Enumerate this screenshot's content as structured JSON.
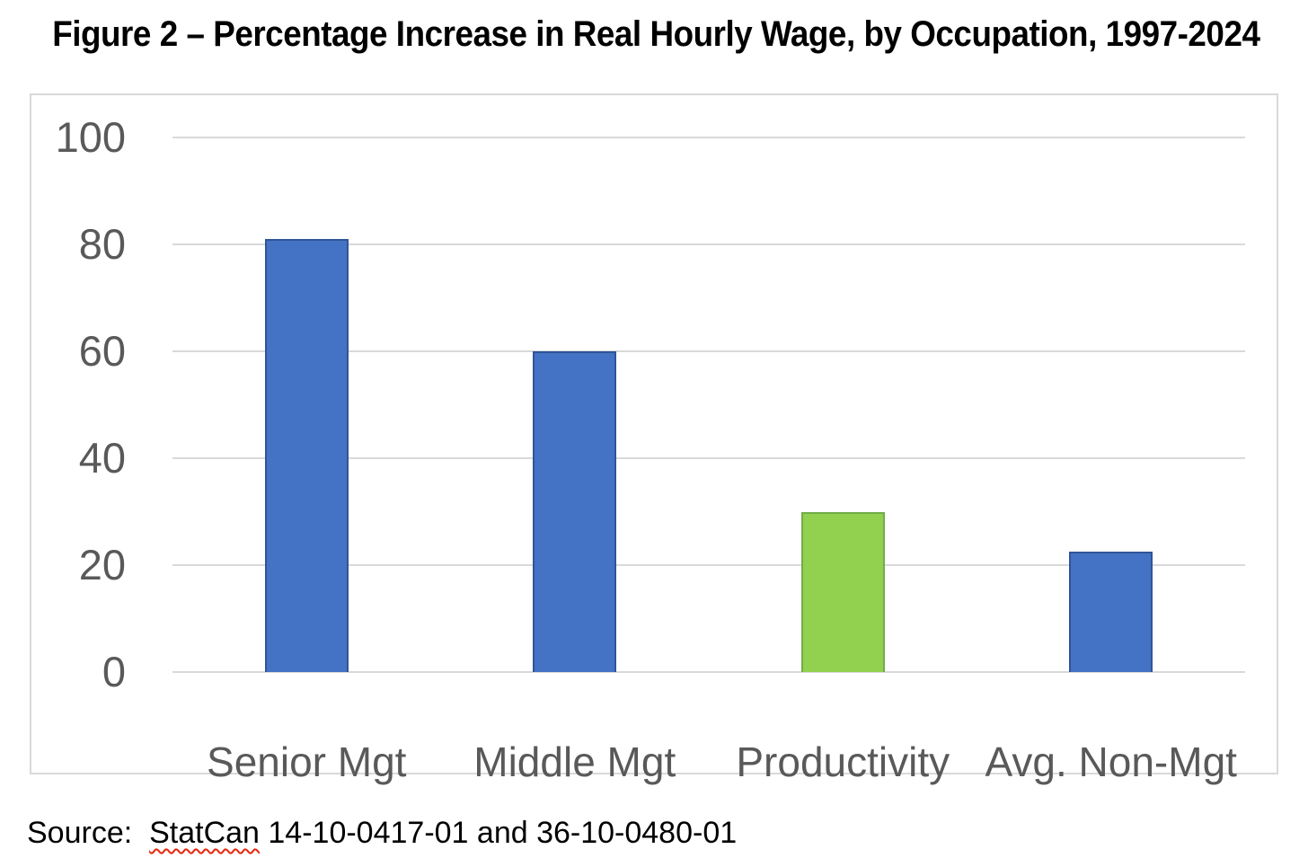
{
  "title": "Figure 2 – Percentage Increase in Real Hourly Wage, by Occupation, 1997-2024",
  "source": {
    "prefix": "Source:",
    "gap": "  ",
    "link_word": "StatCan",
    "rest": " 14-10-0417-01 and 36-10-0480-01"
  },
  "colors": {
    "bar_blue_fill": "#4472C4",
    "bar_blue_border": "#2F5597",
    "bar_green_fill": "#92D050",
    "bar_green_border": "#70AD47",
    "gridline": "#D9D9D9",
    "chart_border": "#D9D9D9",
    "axis_label": "#595959",
    "title_text": "#000000",
    "squiggle_red": "#E8250C"
  },
  "chart_data": {
    "type": "bar",
    "categories": [
      "Senior Mgt",
      "Middle Mgt",
      "Productivity",
      "Avg. Non-Mgt"
    ],
    "values": [
      81,
      60,
      30,
      22.5
    ],
    "bar_fill_colors": [
      "#4472C4",
      "#4472C4",
      "#92D050",
      "#4472C4"
    ],
    "bar_border_colors": [
      "#2F5597",
      "#2F5597",
      "#70AD47",
      "#2F5597"
    ],
    "title": "Figure 2 – Percentage Increase in Real Hourly Wage, by Occupation, 1997-2024",
    "xlabel": "",
    "ylabel": "",
    "ylim": [
      0,
      100
    ],
    "yticks": [
      0,
      20,
      40,
      60,
      80,
      100
    ],
    "grid": true,
    "legend": "none"
  }
}
